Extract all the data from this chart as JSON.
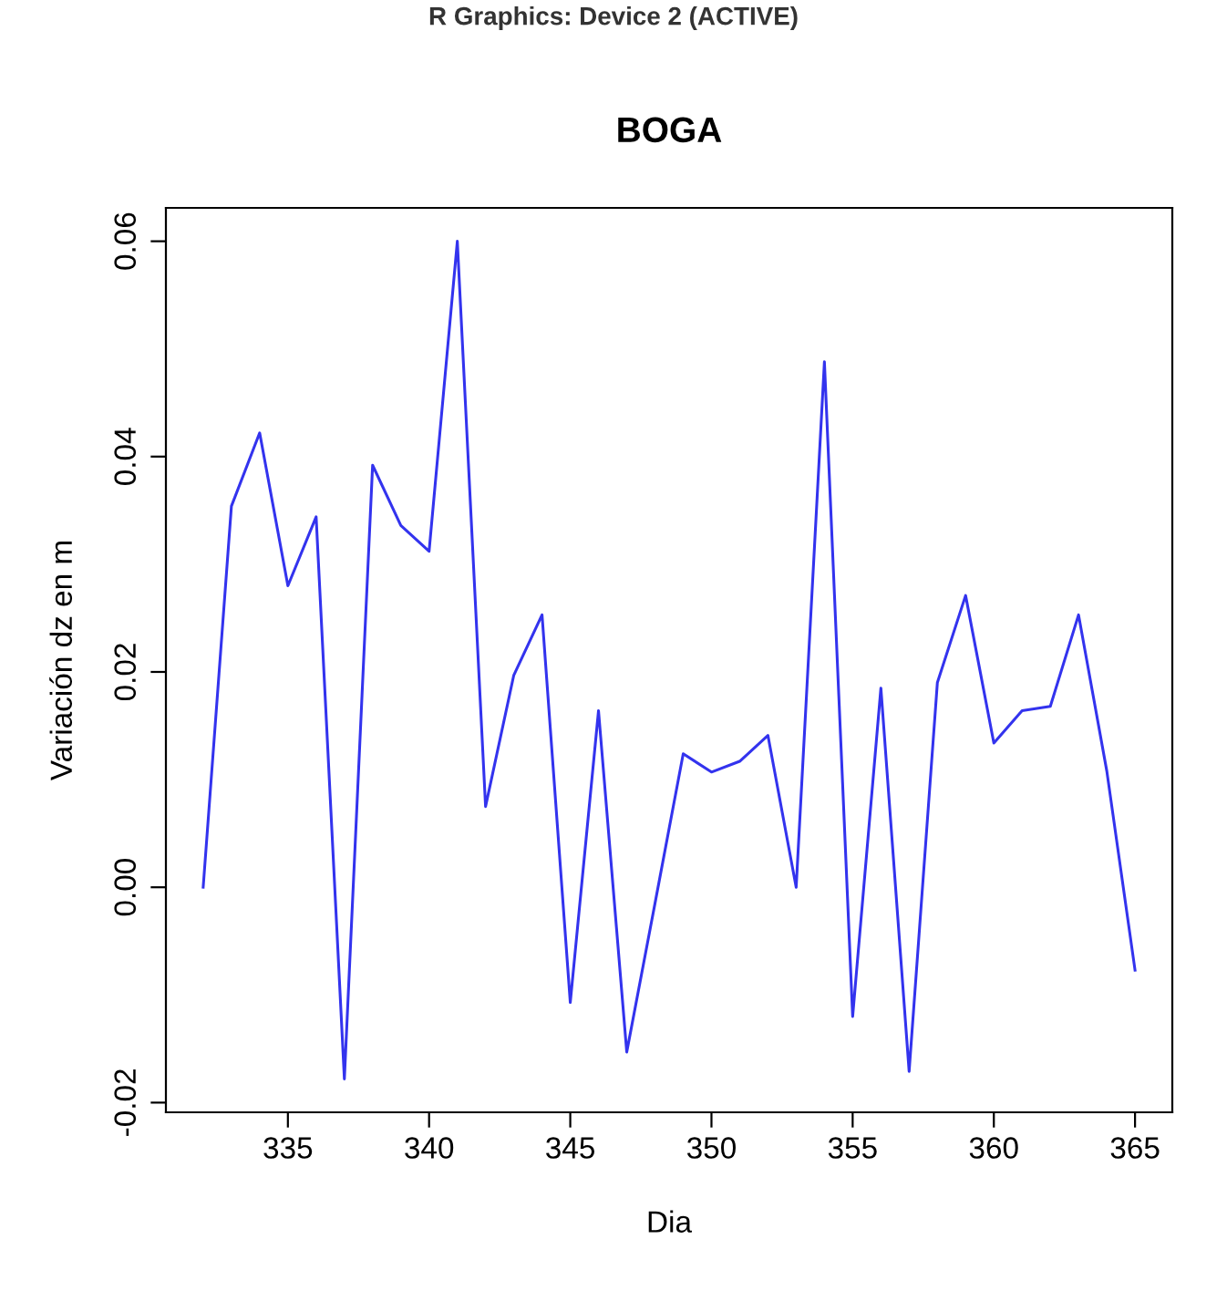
{
  "chart_data": {
    "type": "line",
    "title": "BOGA",
    "xlabel": "Dia",
    "ylabel": "Variación dz en m",
    "annotations": [
      "R Graphics: Device 2 (ACTIVE)"
    ],
    "x": [
      332,
      333,
      334,
      335,
      336,
      337,
      338,
      339,
      340,
      341,
      342,
      343,
      344,
      345,
      346,
      347,
      348,
      349,
      350,
      351,
      352,
      353,
      354,
      355,
      356,
      357,
      358,
      359,
      360,
      361,
      362,
      363,
      364,
      365
    ],
    "series": [
      {
        "color": "#3333ee",
        "values": [
          0.0,
          0.0354,
          0.0422,
          0.028,
          0.0344,
          -0.0178,
          0.0392,
          0.0336,
          0.0312,
          0.06,
          0.0075,
          0.0197,
          0.0253,
          -0.0107,
          0.0164,
          -0.0153,
          -0.0015,
          0.0124,
          0.0107,
          0.0117,
          0.0141,
          0.0,
          0.0488,
          -0.012,
          0.0185,
          -0.0171,
          0.019,
          0.0271,
          0.0134,
          0.0164,
          0.0168,
          0.0253,
          0.0108,
          -0.0077
        ]
      }
    ],
    "xlim": [
      330.68,
      366.32
    ],
    "ylim": [
      -0.0209,
      0.0631
    ],
    "xticks": [
      335,
      340,
      345,
      350,
      355,
      360,
      365
    ],
    "yticks": [
      {
        "value": -0.02,
        "label": "-0.02"
      },
      {
        "value": 0.0,
        "label": "0.00"
      },
      {
        "value": 0.02,
        "label": "0.02"
      },
      {
        "value": 0.04,
        "label": "0.04"
      },
      {
        "value": 0.06,
        "label": "0.06"
      }
    ],
    "grid": false,
    "legend": false,
    "marker": "none",
    "line_style": "solid"
  }
}
